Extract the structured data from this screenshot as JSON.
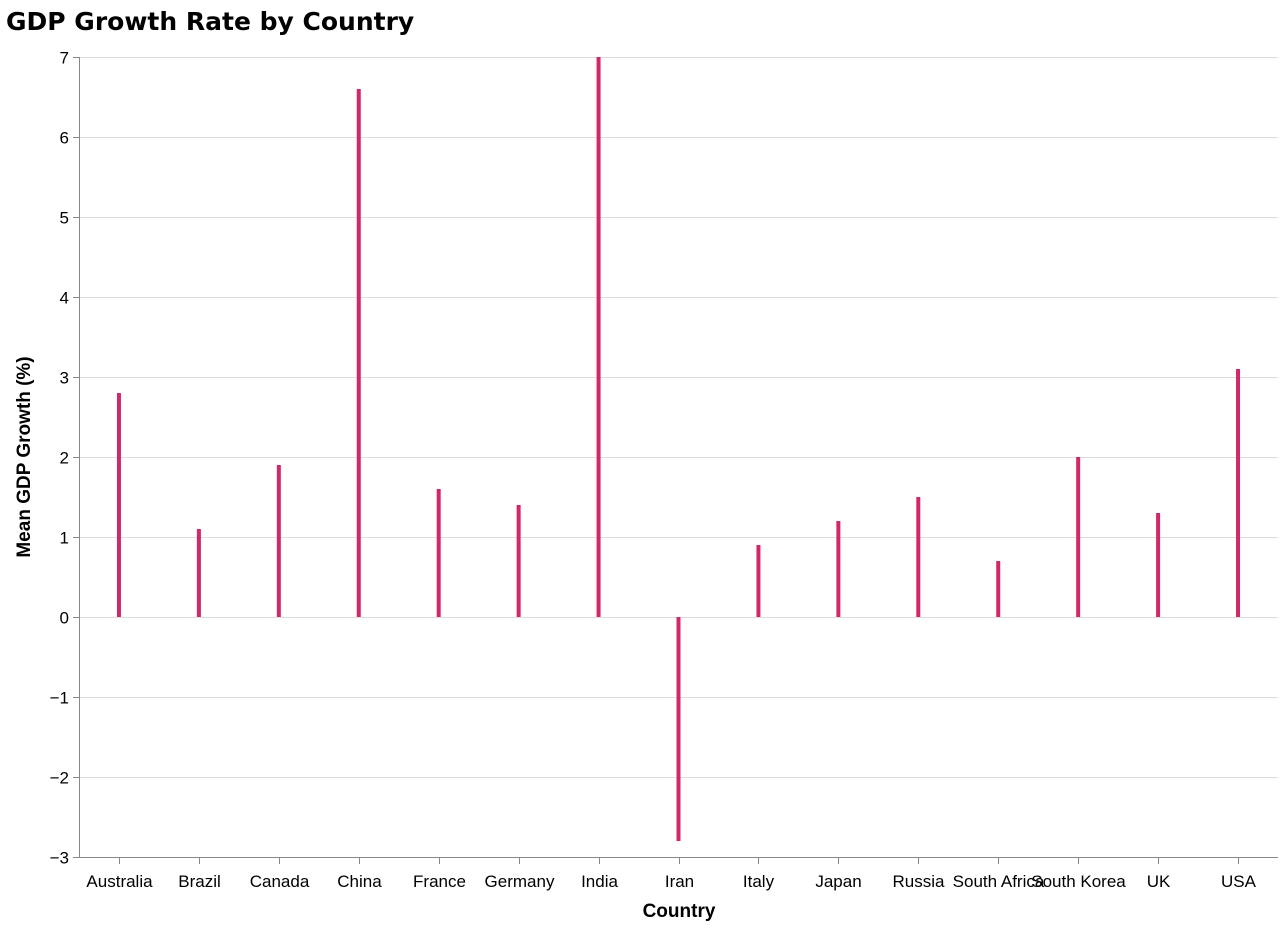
{
  "chart_data": {
    "type": "bar",
    "title": "GDP Growth Rate by Country",
    "xlabel": "Country",
    "ylabel": "Mean GDP Growth (%)",
    "categories": [
      "Australia",
      "Brazil",
      "Canada",
      "China",
      "France",
      "Germany",
      "India",
      "Iran",
      "Italy",
      "Japan",
      "Russia",
      "South Africa",
      "South Korea",
      "UK",
      "USA"
    ],
    "values": [
      2.8,
      1.1,
      1.9,
      6.6,
      1.6,
      1.4,
      7.0,
      -2.8,
      0.9,
      1.2,
      1.5,
      0.7,
      2.0,
      1.3,
      3.1
    ],
    "ylim": [
      -3,
      7
    ],
    "yticks": [
      -3,
      -2,
      -1,
      0,
      1,
      2,
      3,
      4,
      5,
      6,
      7
    ],
    "grid": true,
    "bar_color": "#d0296a"
  }
}
